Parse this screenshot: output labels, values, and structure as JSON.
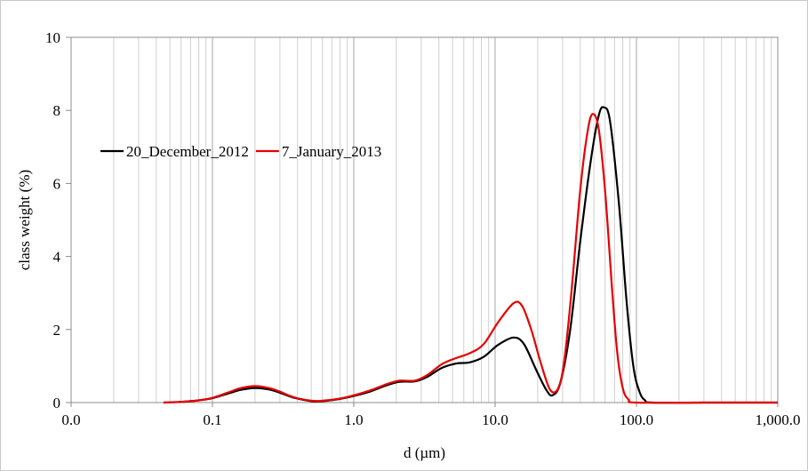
{
  "chart_data": {
    "type": "line",
    "title": "",
    "xlabel": "d (µm)",
    "ylabel": "class weight  (%)",
    "xscale": "log",
    "xlim": [
      0.01,
      1000
    ],
    "ylim": [
      0,
      10
    ],
    "x_tick_labels": [
      {
        "value": 0.01,
        "label": "0.0"
      },
      {
        "value": 0.1,
        "label": "0.1"
      },
      {
        "value": 1,
        "label": "1.0"
      },
      {
        "value": 10,
        "label": "10.0"
      },
      {
        "value": 100,
        "label": "100.0"
      },
      {
        "value": 1000,
        "label": "1,000.0"
      }
    ],
    "y_ticks": [
      0,
      2,
      4,
      6,
      8,
      10
    ],
    "grid": "vertical minor and major gridlines",
    "legend_position": "upper-left",
    "series": [
      {
        "name": "20_December_2012",
        "color": "#000000",
        "points": [
          [
            0.045,
            0.0
          ],
          [
            0.06,
            0.02
          ],
          [
            0.08,
            0.06
          ],
          [
            0.1,
            0.12
          ],
          [
            0.13,
            0.25
          ],
          [
            0.16,
            0.35
          ],
          [
            0.2,
            0.4
          ],
          [
            0.25,
            0.36
          ],
          [
            0.3,
            0.27
          ],
          [
            0.38,
            0.13
          ],
          [
            0.5,
            0.04
          ],
          [
            0.6,
            0.04
          ],
          [
            0.8,
            0.1
          ],
          [
            1.0,
            0.18
          ],
          [
            1.3,
            0.3
          ],
          [
            1.7,
            0.47
          ],
          [
            2.1,
            0.57
          ],
          [
            2.7,
            0.58
          ],
          [
            3.3,
            0.7
          ],
          [
            4.2,
            0.95
          ],
          [
            5.3,
            1.07
          ],
          [
            6.6,
            1.1
          ],
          [
            8.3,
            1.25
          ],
          [
            10.5,
            1.58
          ],
          [
            13.5,
            1.78
          ],
          [
            16,
            1.6
          ],
          [
            19.5,
            0.9
          ],
          [
            23,
            0.35
          ],
          [
            25.5,
            0.2
          ],
          [
            29,
            0.55
          ],
          [
            34,
            2.0
          ],
          [
            40,
            4.4
          ],
          [
            47,
            6.5
          ],
          [
            54,
            7.85
          ],
          [
            59,
            8.08
          ],
          [
            65,
            7.7
          ],
          [
            75,
            5.5
          ],
          [
            85,
            2.8
          ],
          [
            95,
            1.0
          ],
          [
            105,
            0.3
          ],
          [
            115,
            0.06
          ],
          [
            130,
            0.0
          ],
          [
            300,
            0.0
          ],
          [
            1000,
            0.0
          ]
        ]
      },
      {
        "name": "7_January_2013",
        "color": "#e60000",
        "points": [
          [
            0.045,
            0.0
          ],
          [
            0.06,
            0.02
          ],
          [
            0.08,
            0.06
          ],
          [
            0.1,
            0.13
          ],
          [
            0.13,
            0.28
          ],
          [
            0.16,
            0.4
          ],
          [
            0.2,
            0.45
          ],
          [
            0.25,
            0.4
          ],
          [
            0.3,
            0.3
          ],
          [
            0.38,
            0.14
          ],
          [
            0.5,
            0.05
          ],
          [
            0.6,
            0.05
          ],
          [
            0.8,
            0.11
          ],
          [
            1.0,
            0.2
          ],
          [
            1.3,
            0.33
          ],
          [
            1.7,
            0.5
          ],
          [
            2.1,
            0.6
          ],
          [
            2.7,
            0.6
          ],
          [
            3.3,
            0.75
          ],
          [
            4.2,
            1.05
          ],
          [
            5.3,
            1.22
          ],
          [
            6.6,
            1.35
          ],
          [
            8.3,
            1.6
          ],
          [
            10.5,
            2.2
          ],
          [
            13.5,
            2.72
          ],
          [
            15.5,
            2.65
          ],
          [
            18,
            2.0
          ],
          [
            21,
            1.1
          ],
          [
            24.5,
            0.35
          ],
          [
            28,
            0.4
          ],
          [
            31,
            1.2
          ],
          [
            35,
            3.2
          ],
          [
            40,
            5.8
          ],
          [
            45,
            7.4
          ],
          [
            49,
            7.9
          ],
          [
            54,
            7.5
          ],
          [
            60,
            5.8
          ],
          [
            67,
            3.2
          ],
          [
            73,
            1.4
          ],
          [
            80,
            0.4
          ],
          [
            88,
            0.08
          ],
          [
            100,
            0.0
          ],
          [
            300,
            0.0
          ],
          [
            1000,
            0.0
          ]
        ]
      }
    ]
  }
}
